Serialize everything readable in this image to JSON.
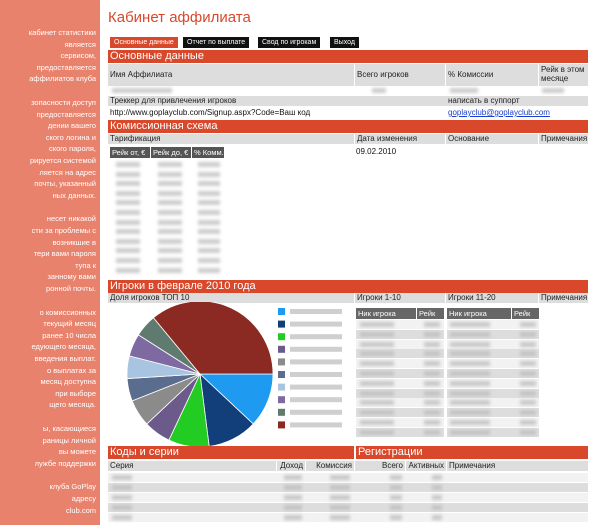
{
  "sidebar": {
    "lines": [
      "кабинет статистики",
      "является",
      "сервисом,",
      "предоставляется",
      "аффилиатов клуба",
      "зопасности доступ",
      "предоставляется",
      "дении вашего",
      "ского логина и",
      "ского пароля,",
      "рируется системой",
      "ляется на адрес",
      "почты, указанный",
      "ных данных.",
      "несет никакой",
      "сти за проблемы с",
      "возникшие в",
      "тери вами пароля",
      "тупа к",
      "занному вами",
      "ронной почты.",
      "о комиссионных",
      "текущий месяц",
      "ранее 10 числа",
      "едующего месяца,",
      "введения выплат.",
      "о выплатах за",
      "месяц доступна",
      "при выборе",
      "щего месяца.",
      "ы, касающиеся",
      "раницы личной",
      "вы можете",
      "лужбе поддержки",
      "клуба GoPlay",
      "адресу",
      "club.com"
    ]
  },
  "header": {
    "title": "Кабинет аффилиата",
    "tabs": [
      "Основные данные",
      "Отчет по выплате",
      "Свод по игрокам",
      "Выход"
    ]
  },
  "main_data": {
    "title": "Основные данные",
    "columns": [
      "Имя Аффилиата",
      "Всего игроков",
      "% Комиссии",
      "Рейк в этом месяце"
    ],
    "tracker_label": "Треккер для привлечения игроков",
    "support_label": "написать в суппорт",
    "tracker_url": "http://www.goplayclub.com/Signup.aspx?Code=Ваш код",
    "support_email": "goplayclub@goplayclub.com"
  },
  "commission": {
    "title": "Комиссионная схема",
    "columns": [
      "Тарификация",
      "Дата изменения",
      "Основание",
      "Примечания"
    ],
    "scale_columns": [
      "Рейк от, €",
      "Рейк до, €",
      "% Комм."
    ],
    "date": "09.02.2010"
  },
  "players": {
    "title": "Игроки в феврале 2010 года",
    "columns": [
      "Доля игроков ТОП 10",
      "Игроки 1-10",
      "Игроки 11-20",
      "Примечания"
    ],
    "player_columns": [
      "Ник игрока",
      "Рейк"
    ]
  },
  "codes": {
    "title": "Коды и серии",
    "registrations_title": "Регистрации",
    "columns": [
      "Серия",
      "Доход",
      "Комиссия",
      "Всего",
      "Активных",
      "Примечания"
    ]
  },
  "chart_data": {
    "type": "pie",
    "values": [
      12,
      11,
      9,
      6,
      6,
      5,
      5,
      5,
      5,
      36
    ],
    "colors": [
      "#1e9bf0",
      "#123f7a",
      "#22cc22",
      "#6b5a8a",
      "#8b8b8b",
      "#5b6d8f",
      "#a9c4e0",
      "#7e6aa0",
      "#5f7a6e",
      "#8b2a22"
    ]
  }
}
